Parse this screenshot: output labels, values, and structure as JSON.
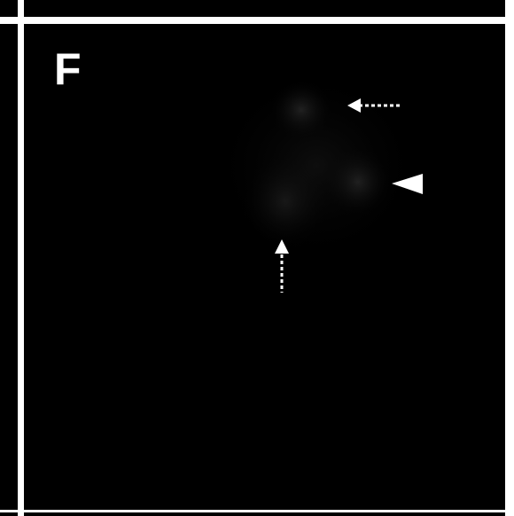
{
  "figure": {
    "panel_label": "F",
    "annotations": [
      {
        "type": "dotted-arrow",
        "direction": "left"
      },
      {
        "type": "arrowhead",
        "direction": "left"
      },
      {
        "type": "dotted-arrow",
        "direction": "up"
      }
    ],
    "colors": {
      "background": "#000000",
      "border": "#ffffff",
      "marks": "#ffffff"
    }
  }
}
